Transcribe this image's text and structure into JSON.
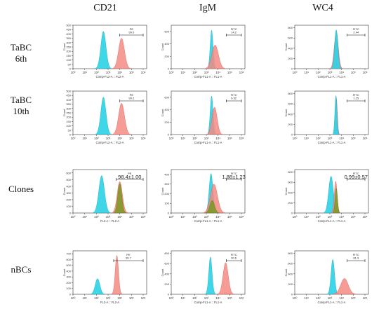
{
  "columns": [
    "CD21",
    "IgM",
    "WC4"
  ],
  "rows": [
    {
      "label_lines": [
        "TaBC",
        "6th"
      ]
    },
    {
      "label_lines": [
        "TaBC",
        "10th"
      ]
    },
    {
      "label_lines": [
        "Clones"
      ]
    },
    {
      "label_lines": [
        "nBCs"
      ]
    }
  ],
  "colors": {
    "control": "#2fd3e6",
    "control_stroke": "#1aa9bd",
    "stained": "#f28b82",
    "stained_stroke": "#e0584e",
    "clone": "#7a9a22",
    "clone_stroke": "#5a7a10"
  },
  "chart_data": [
    {
      "type": "area",
      "row": 0,
      "col": 0,
      "y_axis_label": "Count",
      "x_axis_label": "Comp-FL2-A :: FL2-A",
      "x_ticks": [
        "10⁰",
        "10¹",
        "10²",
        "10³",
        "10⁴",
        "10⁵",
        "10⁶"
      ],
      "y_ticks": [
        "0",
        "50",
        "100",
        "150",
        "200",
        "250",
        "300",
        "350",
        "400",
        "450",
        "500"
      ],
      "gate_name": "PE",
      "gate_value": "99.0",
      "gate_range": [
        10000,
        1000000
      ],
      "y_max": 500,
      "scale": "log10",
      "peaks": [
        {
          "kind": "control",
          "center": 2.6,
          "width": 0.22,
          "height": 430
        },
        {
          "kind": "stained",
          "center": 4.15,
          "width": 0.25,
          "height": 350
        }
      ]
    },
    {
      "type": "area",
      "row": 0,
      "col": 1,
      "y_axis_label": "Count",
      "x_axis_label": "Comp-FL1-A :: FL1-A",
      "x_ticks": [
        "10⁰",
        "10¹",
        "10²",
        "10³",
        "10⁴",
        "10⁵",
        "10⁶"
      ],
      "y_ticks": [
        "0",
        "200",
        "400",
        "600"
      ],
      "gate_name": "FITC",
      "gate_value": "14.2",
      "gate_range": [
        50000,
        1000000
      ],
      "y_max": 700,
      "scale": "log10",
      "peaks": [
        {
          "kind": "control",
          "center": 3.45,
          "width": 0.12,
          "height": 620
        },
        {
          "kind": "stained",
          "center": 3.75,
          "width": 0.28,
          "height": 380
        }
      ]
    },
    {
      "type": "area",
      "row": 0,
      "col": 2,
      "y_axis_label": "Count",
      "x_axis_label": "Comp-FL1-A :: FL1-A",
      "x_ticks": [
        "10⁰",
        "10¹",
        "10²",
        "10³",
        "10⁴",
        "10⁵",
        "10⁶"
      ],
      "y_ticks": [
        "0",
        "200",
        "400",
        "600",
        "800"
      ],
      "gate_name": "FITC",
      "gate_value": "2.44",
      "gate_range": [
        30000,
        1000000
      ],
      "y_max": 850,
      "scale": "log10",
      "peaks": [
        {
          "kind": "stained",
          "center": 3.55,
          "width": 0.17,
          "height": 720
        },
        {
          "kind": "control",
          "center": 3.55,
          "width": 0.14,
          "height": 760
        }
      ]
    },
    {
      "type": "area",
      "row": 1,
      "col": 0,
      "y_axis_label": "Count",
      "x_axis_label": "Comp-FL2-A :: FL2-A",
      "x_ticks": [
        "10⁰",
        "10¹",
        "10²",
        "10³",
        "10⁴",
        "10⁵",
        "10⁶"
      ],
      "y_ticks": [
        "0",
        "50",
        "100",
        "150",
        "200",
        "250",
        "300",
        "350",
        "400",
        "450",
        "500"
      ],
      "gate_name": "PE",
      "gate_value": "99.2",
      "gate_range": [
        10000,
        1000000
      ],
      "y_max": 500,
      "scale": "log10",
      "peaks": [
        {
          "kind": "control",
          "center": 2.6,
          "width": 0.22,
          "height": 430
        },
        {
          "kind": "stained",
          "center": 4.15,
          "width": 0.25,
          "height": 360
        }
      ]
    },
    {
      "type": "area",
      "row": 1,
      "col": 1,
      "y_axis_label": "Count",
      "x_axis_label": "Comp-FL1-A :: FL1-A",
      "x_ticks": [
        "10⁰",
        "10¹",
        "10²",
        "10³",
        "10⁴",
        "10⁵",
        "10⁶"
      ],
      "y_ticks": [
        "0",
        "200",
        "400",
        "600"
      ],
      "gate_name": "FITC",
      "gate_value": "6.52",
      "gate_range": [
        50000,
        1000000
      ],
      "y_max": 700,
      "scale": "log10",
      "peaks": [
        {
          "kind": "control",
          "center": 3.45,
          "width": 0.12,
          "height": 620
        },
        {
          "kind": "stained",
          "center": 3.7,
          "width": 0.22,
          "height": 440
        }
      ]
    },
    {
      "type": "area",
      "row": 1,
      "col": 2,
      "y_axis_label": "Count",
      "x_axis_label": "Comp-FL1-A :: FL1-A",
      "x_ticks": [
        "10⁰",
        "10¹",
        "10²",
        "10³",
        "10⁴",
        "10⁵",
        "10⁶"
      ],
      "y_ticks": [
        "0",
        "200",
        "400",
        "600",
        "800"
      ],
      "gate_name": "FITC",
      "gate_value": "1.25",
      "gate_range": [
        30000,
        1000000
      ],
      "y_max": 850,
      "scale": "log10",
      "peaks": [
        {
          "kind": "stained",
          "center": 3.55,
          "width": 0.09,
          "height": 720
        },
        {
          "kind": "control",
          "center": 3.52,
          "width": 0.09,
          "height": 760
        }
      ]
    },
    {
      "type": "area",
      "row": 2,
      "col": 0,
      "y_axis_label": "Count",
      "x_axis_label": "FL2-A :: FL2-A",
      "x_ticks": [
        "10⁰",
        "10¹",
        "10²",
        "10³",
        "10⁴",
        "10⁵",
        "10⁶"
      ],
      "y_ticks": [
        "0",
        "100",
        "200",
        "300",
        "400",
        "500",
        "600"
      ],
      "gate_name": "PE",
      "gate_value": "98.4±1.00",
      "gate_range": [
        5000,
        1000000
      ],
      "y_max": 650,
      "scale": "log10",
      "peaks": [
        {
          "kind": "control",
          "center": 2.45,
          "width": 0.24,
          "height": 560
        },
        {
          "kind": "stained",
          "center": 4.0,
          "width": 0.22,
          "height": 470
        },
        {
          "kind": "clone",
          "center": 4.0,
          "width": 0.17,
          "height": 440
        }
      ]
    },
    {
      "type": "area",
      "row": 2,
      "col": 1,
      "y_axis_label": "Count",
      "x_axis_label": "Comp-FL1-A :: FL1-A",
      "x_ticks": [
        "10⁰",
        "10¹",
        "10²",
        "10³",
        "10⁴",
        "10⁵",
        "10⁶"
      ],
      "y_ticks": [
        "0",
        "100",
        "200",
        "300",
        "400"
      ],
      "gate_name": "FITC",
      "gate_value": "1.88±1.23",
      "gate_range": [
        50000,
        1000000
      ],
      "y_max": 450,
      "scale": "log10",
      "peaks": [
        {
          "kind": "control",
          "center": 3.4,
          "width": 0.16,
          "height": 410
        },
        {
          "kind": "stained",
          "center": 3.65,
          "width": 0.3,
          "height": 300
        },
        {
          "kind": "clone",
          "center": 3.5,
          "width": 0.2,
          "height": 130
        }
      ]
    },
    {
      "type": "area",
      "row": 2,
      "col": 2,
      "y_axis_label": "Count",
      "x_axis_label": "Comp-FL1-A :: FL1-A",
      "x_ticks": [
        "10⁰",
        "10¹",
        "10²",
        "10³",
        "10⁴",
        "10⁵",
        "10⁶"
      ],
      "y_ticks": [
        "0",
        "200",
        "400",
        "600",
        "800"
      ],
      "gate_name": "FITC",
      "gate_value": "0.99±0.57",
      "gate_range": [
        30000,
        1000000
      ],
      "y_max": 850,
      "scale": "log10",
      "peaks": [
        {
          "kind": "control",
          "center": 3.1,
          "width": 0.2,
          "height": 720
        },
        {
          "kind": "stained",
          "center": 3.5,
          "width": 0.12,
          "height": 620
        },
        {
          "kind": "clone",
          "center": 3.55,
          "width": 0.1,
          "height": 480
        }
      ]
    },
    {
      "type": "area",
      "row": 3,
      "col": 0,
      "y_axis_label": "Count",
      "x_axis_label": "FL2-A :: FL2-A",
      "x_ticks": [
        "10⁰",
        "10¹",
        "10²",
        "10³",
        "10⁴",
        "10⁵",
        "10⁶"
      ],
      "y_ticks": [
        "0",
        "100",
        "200",
        "300",
        "400",
        "500",
        "600",
        "700"
      ],
      "gate_name": "PE",
      "gate_value": "99.7",
      "gate_range": [
        3000,
        1000000
      ],
      "y_max": 750,
      "scale": "log10",
      "peaks": [
        {
          "kind": "control",
          "center": 2.1,
          "width": 0.2,
          "height": 270
        },
        {
          "kind": "stained",
          "center": 3.75,
          "width": 0.14,
          "height": 670
        }
      ]
    },
    {
      "type": "area",
      "row": 3,
      "col": 1,
      "y_axis_label": "Count",
      "x_axis_label": "Comp-FL1-A :: FL1-A",
      "x_ticks": [
        "10⁰",
        "10¹",
        "10²",
        "10³",
        "10⁴",
        "10⁵",
        "10⁶"
      ],
      "y_ticks": [
        "0",
        "200",
        "400",
        "600",
        "800"
      ],
      "gate_name": "FITC",
      "gate_value": "90.6",
      "gate_range": [
        50000,
        1000000
      ],
      "y_max": 850,
      "scale": "log10",
      "peaks": [
        {
          "kind": "control",
          "center": 3.35,
          "width": 0.14,
          "height": 730
        },
        {
          "kind": "stained",
          "center": 4.65,
          "width": 0.22,
          "height": 620
        }
      ]
    },
    {
      "type": "area",
      "row": 3,
      "col": 2,
      "y_axis_label": "Count",
      "x_axis_label": "Comp-FL1-A :: FL1-A",
      "x_ticks": [
        "10⁰",
        "10¹",
        "10²",
        "10³",
        "10⁴",
        "10⁵",
        "10⁶"
      ],
      "y_ticks": [
        "0",
        "200",
        "400",
        "600",
        "800"
      ],
      "gate_name": "FITC",
      "gate_value": "81.9",
      "gate_range": [
        30000,
        1000000
      ],
      "y_max": 850,
      "scale": "log10",
      "peaks": [
        {
          "kind": "control",
          "center": 3.25,
          "width": 0.15,
          "height": 680
        },
        {
          "kind": "stained",
          "center": 4.25,
          "width": 0.32,
          "height": 310
        }
      ]
    }
  ]
}
